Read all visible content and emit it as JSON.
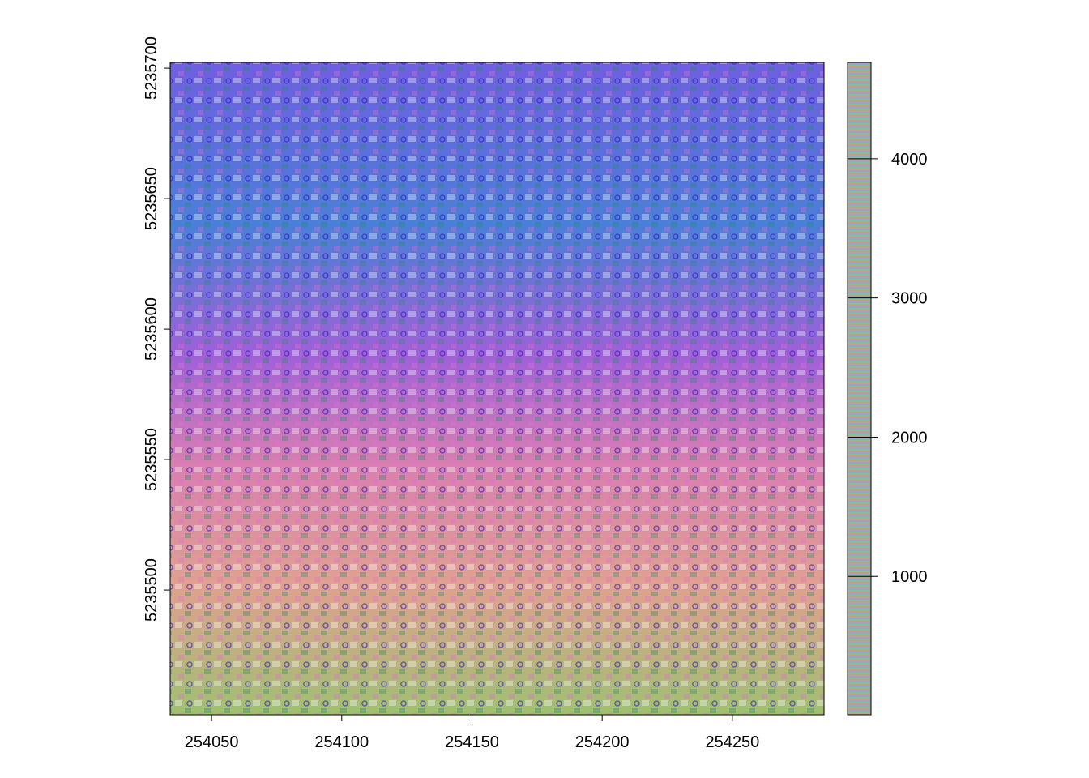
{
  "chart_data": {
    "type": "raster",
    "xlim": [
      254034.1,
      254285.2
    ],
    "xticks": [
      254050,
      254100,
      254150,
      254200,
      254250
    ],
    "ylim": [
      5235452.2,
      5235702.2
    ],
    "yticks": [
      5235500,
      5235550,
      5235600,
      5235650,
      5235700
    ],
    "colorbar": {
      "lim": [
        6,
        4692
      ],
      "ticks": [
        1000,
        2000,
        3000,
        4000
      ]
    }
  }
}
